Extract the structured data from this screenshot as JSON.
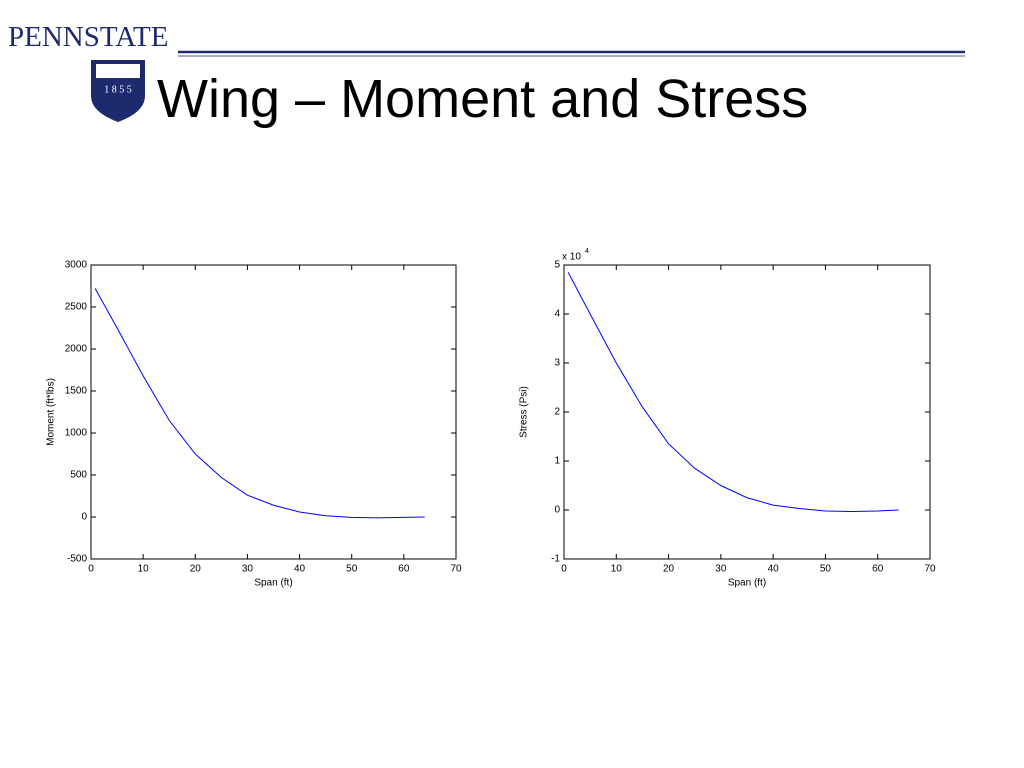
{
  "header": {
    "brand": "PENNSTATE",
    "logo_text": "1 8 5 5",
    "title": "Wing – Moment and Stress"
  },
  "chart_data": [
    {
      "type": "line",
      "x_label": "Span (ft)",
      "y_label": "Moment (ft*lbs)",
      "x": [
        0.8,
        5,
        10,
        15,
        20,
        25,
        30,
        35,
        40,
        45,
        50,
        55,
        60,
        64
      ],
      "y": [
        2720,
        2250,
        1680,
        1150,
        750,
        470,
        260,
        140,
        60,
        15,
        -5,
        -10,
        -5,
        0
      ],
      "color": "#0000ff",
      "xlim": [
        0,
        70
      ],
      "ylim": [
        -500,
        3000
      ],
      "xticks": [
        0,
        10,
        20,
        30,
        40,
        50,
        60,
        70
      ],
      "yticks": [
        -500,
        0,
        500,
        1000,
        1500,
        2000,
        2500,
        3000
      ],
      "grid": false
    },
    {
      "type": "line",
      "x_label": "Span (ft)",
      "y_label": "Stress (Psi)",
      "y_multiplier": "x 10",
      "y_multiplier_exponent": "4",
      "x": [
        0.8,
        5,
        10,
        15,
        20,
        25,
        30,
        35,
        40,
        45,
        50,
        55,
        60,
        64
      ],
      "y": [
        4.85,
        4.0,
        3.0,
        2.1,
        1.35,
        0.85,
        0.5,
        0.25,
        0.1,
        0.03,
        -0.02,
        -0.03,
        -0.02,
        0
      ],
      "color": "#0000ff",
      "xlim": [
        0,
        70
      ],
      "ylim": [
        -1,
        5
      ],
      "xticks": [
        0,
        10,
        20,
        30,
        40,
        50,
        60,
        70
      ],
      "yticks": [
        -1,
        0,
        1,
        2,
        3,
        4,
        5
      ],
      "grid": false
    }
  ]
}
